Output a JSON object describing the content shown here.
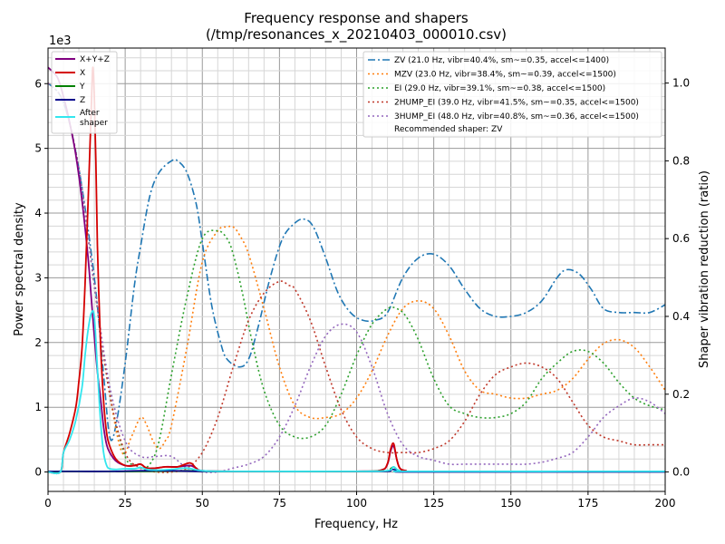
{
  "chart_data": {
    "type": "line",
    "title": "Frequency response and shapers",
    "subtitle": "(/tmp/resonances_x_20210403_000010.csv)",
    "xlabel": "Frequency, Hz",
    "ylabel": "Power spectral density",
    "y2label": "Shaper vibration reduction (ratio)",
    "y_multiplier_label": "1e3",
    "xlim": [
      0,
      200
    ],
    "ylim": [
      -0.3,
      6.55
    ],
    "y2lim": [
      -0.05,
      1.09
    ],
    "grid": true,
    "x_ticks": [
      "0",
      "25",
      "50",
      "75",
      "100",
      "125",
      "150",
      "175",
      "200"
    ],
    "y_ticks": [
      "0",
      "1",
      "2",
      "3",
      "4",
      "5",
      "6"
    ],
    "y2_ticks": [
      "0.0",
      "0.2",
      "0.4",
      "0.6",
      "0.8",
      "1.0"
    ],
    "legend_left": {
      "placement": "top-left",
      "entries": [
        "X+Y+Z",
        "X",
        "Y",
        "Z",
        "After\nshaper"
      ]
    },
    "legend_right": {
      "placement": "top-right",
      "recommended": "Recommended shaper: ZV"
    },
    "psd_series": [
      {
        "name": "X+Y+Z",
        "color": "#800080",
        "x": [
          0,
          3,
          5,
          7,
          9,
          11,
          13,
          14,
          15,
          16,
          17,
          18,
          19,
          20,
          22,
          25,
          28,
          30,
          32,
          35,
          38,
          42,
          46,
          48,
          50,
          60,
          100,
          108,
          110,
          111,
          112,
          113,
          114,
          116,
          120,
          200
        ],
        "y": [
          6.25,
          6.1,
          5.8,
          5.4,
          4.9,
          4.2,
          3.3,
          2.7,
          2.1,
          1.55,
          1.15,
          0.7,
          0.42,
          0.3,
          0.17,
          0.1,
          0.1,
          0.12,
          0.06,
          0.06,
          0.08,
          0.08,
          0.1,
          0.06,
          0.02,
          0.01,
          0.01,
          0.03,
          0.12,
          0.32,
          0.4,
          0.2,
          0.06,
          0.02,
          0.01,
          0.01
        ]
      },
      {
        "name": "X",
        "color": "#d40000",
        "x": [
          0,
          4,
          5,
          7,
          9,
          10,
          11,
          12,
          13,
          14,
          14.5,
          15,
          15.5,
          16,
          17,
          18,
          19,
          20,
          22,
          25,
          28,
          30,
          32,
          35,
          38,
          42,
          46,
          48,
          50,
          60,
          100,
          108,
          110,
          111,
          112,
          113,
          114,
          116,
          120,
          200
        ],
        "y": [
          0,
          0,
          0.3,
          0.6,
          1.0,
          1.4,
          1.9,
          2.9,
          4.2,
          5.6,
          6.25,
          5.8,
          4.8,
          3.5,
          2.0,
          1.1,
          0.6,
          0.4,
          0.2,
          0.1,
          0.1,
          0.12,
          0.06,
          0.06,
          0.08,
          0.08,
          0.14,
          0.06,
          0.02,
          0.01,
          0.01,
          0.03,
          0.13,
          0.35,
          0.44,
          0.2,
          0.06,
          0.02,
          0.01,
          0.01
        ]
      },
      {
        "name": "Y",
        "color": "#008000",
        "x": [
          0,
          5,
          10,
          20,
          30,
          45,
          50,
          60,
          80,
          100,
          110,
          111,
          112,
          113,
          115,
          120,
          200
        ],
        "y": [
          0,
          0.01,
          0.01,
          0.01,
          0.01,
          0.02,
          0.01,
          0.01,
          0.01,
          0.01,
          0.02,
          0.05,
          0.08,
          0.04,
          0.01,
          0.01,
          0.01
        ]
      },
      {
        "name": "Z",
        "color": "#00008b",
        "x": [
          0,
          5,
          10,
          20,
          30,
          40,
          50,
          60,
          80,
          100,
          110,
          111,
          112,
          113,
          115,
          120,
          200
        ],
        "y": [
          0.01,
          0.01,
          0.01,
          0.01,
          0.02,
          0.02,
          0.01,
          0.01,
          0.01,
          0.01,
          0.01,
          0.03,
          0.04,
          0.02,
          0.01,
          0.0,
          0.0
        ]
      },
      {
        "name": "After\nshaper",
        "color": "#33e6ee",
        "x": [
          0,
          4,
          5,
          7,
          9,
          11,
          12,
          13,
          14,
          15,
          16,
          17,
          18,
          19,
          20,
          22,
          25,
          28,
          30,
          32,
          35,
          40,
          45,
          50,
          60,
          100,
          110,
          112,
          114,
          120,
          200
        ],
        "y": [
          0,
          0,
          0.3,
          0.5,
          0.8,
          1.3,
          1.8,
          2.2,
          2.45,
          2.4,
          1.6,
          0.8,
          0.3,
          0.1,
          0.05,
          0.04,
          0.05,
          0.05,
          0.07,
          0.04,
          0.03,
          0.04,
          0.06,
          0.02,
          0.01,
          0.01,
          0.02,
          0.08,
          0.02,
          0.01,
          0.01
        ]
      }
    ],
    "shaper_series": [
      {
        "name": "ZV (21.0 Hz, vibr=40.4%, sm~=0.35, accel<=1400)",
        "color": "#1f77b4",
        "dash": "8,3,2,3",
        "x": [
          0,
          5,
          10,
          15,
          18,
          20,
          22,
          25,
          28,
          30,
          33,
          36,
          40,
          42,
          45,
          48,
          50,
          53,
          56,
          58,
          62,
          65,
          68,
          72,
          76,
          80,
          83,
          86,
          90,
          94,
          98,
          102,
          106,
          110,
          115,
          120,
          125,
          130,
          135,
          140,
          145,
          150,
          155,
          160,
          165,
          168,
          172,
          176,
          180,
          185,
          190,
          195,
          200
        ],
        "y": [
          1.0,
          0.95,
          0.78,
          0.5,
          0.25,
          0.09,
          0.12,
          0.28,
          0.48,
          0.58,
          0.71,
          0.77,
          0.8,
          0.8,
          0.77,
          0.69,
          0.59,
          0.43,
          0.33,
          0.29,
          0.27,
          0.29,
          0.37,
          0.5,
          0.6,
          0.64,
          0.65,
          0.63,
          0.55,
          0.46,
          0.41,
          0.39,
          0.39,
          0.41,
          0.5,
          0.55,
          0.56,
          0.53,
          0.47,
          0.42,
          0.4,
          0.4,
          0.41,
          0.44,
          0.5,
          0.52,
          0.51,
          0.47,
          0.42,
          0.41,
          0.41,
          0.41,
          0.43
        ]
      },
      {
        "name": "MZV (23.0 Hz, vibr=38.4%, sm~=0.39, accel<=1500)",
        "color": "#ff7f0e",
        "dash": "2,3",
        "x": [
          0,
          5,
          10,
          15,
          20,
          24,
          27,
          30,
          32,
          34,
          36,
          38,
          40,
          45,
          50,
          55,
          58,
          60,
          62,
          65,
          70,
          75,
          80,
          85,
          90,
          95,
          100,
          105,
          110,
          115,
          120,
          125,
          130,
          135,
          140,
          145,
          150,
          155,
          160,
          165,
          170,
          175,
          180,
          185,
          190,
          195,
          200
        ],
        "y": [
          1.0,
          0.95,
          0.78,
          0.48,
          0.2,
          0.05,
          0.09,
          0.14,
          0.12,
          0.08,
          0.06,
          0.08,
          0.12,
          0.32,
          0.54,
          0.62,
          0.63,
          0.63,
          0.61,
          0.56,
          0.42,
          0.27,
          0.17,
          0.14,
          0.14,
          0.15,
          0.19,
          0.26,
          0.35,
          0.42,
          0.44,
          0.42,
          0.35,
          0.26,
          0.21,
          0.2,
          0.19,
          0.19,
          0.2,
          0.21,
          0.24,
          0.29,
          0.33,
          0.34,
          0.32,
          0.27,
          0.21
        ]
      },
      {
        "name": "EI (29.0 Hz, vibr=39.1%, sm~=0.38, accel<=1500)",
        "color": "#2ca02c",
        "dash": "2,3",
        "x": [
          0,
          5,
          10,
          15,
          20,
          25,
          28,
          30,
          33,
          36,
          40,
          45,
          50,
          55,
          58,
          60,
          63,
          66,
          70,
          75,
          80,
          85,
          90,
          95,
          100,
          105,
          110,
          113,
          116,
          120,
          125,
          130,
          135,
          140,
          145,
          150,
          155,
          160,
          165,
          170,
          175,
          180,
          185,
          190,
          195,
          200
        ],
        "y": [
          1.0,
          0.95,
          0.78,
          0.48,
          0.2,
          0.04,
          0.02,
          0.01,
          0.02,
          0.08,
          0.25,
          0.45,
          0.6,
          0.62,
          0.6,
          0.56,
          0.46,
          0.34,
          0.21,
          0.12,
          0.09,
          0.09,
          0.12,
          0.2,
          0.3,
          0.38,
          0.42,
          0.42,
          0.4,
          0.34,
          0.24,
          0.17,
          0.15,
          0.14,
          0.14,
          0.15,
          0.18,
          0.24,
          0.28,
          0.31,
          0.31,
          0.28,
          0.23,
          0.19,
          0.17,
          0.16
        ]
      },
      {
        "name": "2HUMP_EI (39.0 Hz, vibr=41.5%, sm~=0.35, accel<=1500)",
        "color": "#c0392b",
        "dash": "2,3",
        "x": [
          0,
          5,
          10,
          15,
          20,
          25,
          30,
          35,
          40,
          45,
          50,
          55,
          60,
          65,
          70,
          75,
          78,
          80,
          85,
          90,
          95,
          100,
          105,
          110,
          115,
          120,
          125,
          130,
          135,
          140,
          145,
          150,
          155,
          160,
          165,
          170,
          175,
          180,
          185,
          190,
          195,
          200
        ],
        "y": [
          1.0,
          0.95,
          0.78,
          0.48,
          0.2,
          0.05,
          0.01,
          0.0,
          0.0,
          0.01,
          0.05,
          0.14,
          0.27,
          0.39,
          0.46,
          0.49,
          0.48,
          0.47,
          0.39,
          0.27,
          0.16,
          0.09,
          0.06,
          0.05,
          0.05,
          0.05,
          0.06,
          0.08,
          0.13,
          0.2,
          0.25,
          0.27,
          0.28,
          0.27,
          0.24,
          0.18,
          0.12,
          0.09,
          0.08,
          0.07,
          0.07,
          0.07
        ]
      },
      {
        "name": "3HUMP_EI (48.0 Hz, vibr=40.8%, sm~=0.36, accel<=1500)",
        "color": "#9467bd",
        "dash": "2,3",
        "x": [
          0,
          5,
          10,
          15,
          20,
          25,
          30,
          35,
          40,
          45,
          50,
          55,
          60,
          65,
          70,
          75,
          80,
          85,
          90,
          95,
          100,
          105,
          110,
          115,
          120,
          125,
          130,
          135,
          140,
          145,
          150,
          155,
          160,
          165,
          170,
          175,
          180,
          185,
          190,
          195,
          200
        ],
        "y": [
          1.0,
          0.95,
          0.78,
          0.48,
          0.22,
          0.08,
          0.04,
          0.04,
          0.04,
          0.01,
          0.0,
          0.0,
          0.01,
          0.02,
          0.04,
          0.09,
          0.17,
          0.27,
          0.35,
          0.38,
          0.36,
          0.27,
          0.15,
          0.07,
          0.04,
          0.03,
          0.02,
          0.02,
          0.02,
          0.02,
          0.02,
          0.02,
          0.025,
          0.035,
          0.05,
          0.09,
          0.14,
          0.17,
          0.19,
          0.18,
          0.15
        ]
      }
    ]
  }
}
